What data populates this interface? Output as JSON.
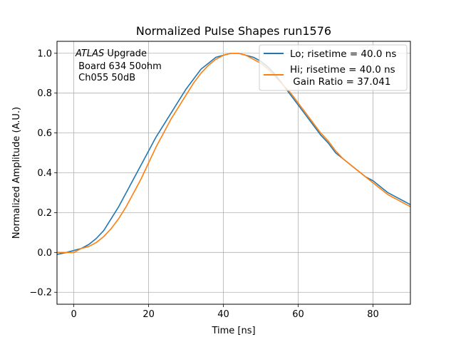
{
  "chart_data": {
    "type": "line",
    "title": "Normalized Pulse Shapes run1576",
    "xlabel": "Time [ns]",
    "ylabel": "Normalized Amplitude (A.U.)",
    "xlim": [
      -4.5,
      90
    ],
    "ylim": [
      -0.26,
      1.06
    ],
    "xticks": [
      0,
      20,
      40,
      60,
      80
    ],
    "xtick_labels": [
      "0",
      "20",
      "40",
      "60",
      "80"
    ],
    "yticks": [
      -0.2,
      0.0,
      0.2,
      0.4,
      0.6,
      0.8,
      1.0
    ],
    "ytick_labels": [
      "−0.2",
      "0.0",
      "0.2",
      "0.4",
      "0.6",
      "0.8",
      "1.0"
    ],
    "grid": true,
    "legend_position": "top-right",
    "annotation": {
      "line1_italic": "ATLAS",
      "line1_rest": " Upgrade",
      "line2": "Board 634 50ohm",
      "line3": "Ch055 50dB"
    },
    "series": [
      {
        "name": "Lo; risetime = 40.0 ns",
        "color": "#1f77b4",
        "x": [
          -4.5,
          -2,
          0,
          2,
          4,
          6,
          8,
          10,
          12,
          14,
          16,
          18,
          20,
          22,
          24,
          26,
          28,
          30,
          32,
          34,
          36,
          38,
          40,
          42,
          44,
          46,
          48,
          50,
          52,
          54,
          56,
          58,
          60,
          62,
          64,
          66,
          68,
          70,
          72,
          74,
          76,
          78,
          80,
          82,
          84,
          86,
          88,
          90
        ],
        "y": [
          -0.01,
          0.0,
          0.01,
          0.02,
          0.04,
          0.07,
          0.11,
          0.17,
          0.23,
          0.3,
          0.37,
          0.44,
          0.51,
          0.58,
          0.64,
          0.7,
          0.76,
          0.82,
          0.87,
          0.92,
          0.95,
          0.98,
          0.99,
          1.0,
          1.0,
          0.99,
          0.98,
          0.96,
          0.93,
          0.89,
          0.84,
          0.79,
          0.74,
          0.69,
          0.64,
          0.59,
          0.55,
          0.5,
          0.47,
          0.44,
          0.41,
          0.38,
          0.36,
          0.33,
          0.3,
          0.28,
          0.26,
          0.24
        ]
      },
      {
        "name": "Hi; risetime = 40.0 ns\n Gain Ratio = 37.041",
        "color": "#ff7f0e",
        "x": [
          -4.5,
          -2,
          0,
          2,
          4,
          6,
          8,
          10,
          12,
          14,
          16,
          18,
          20,
          22,
          24,
          26,
          28,
          30,
          32,
          34,
          36,
          38,
          40,
          42,
          44,
          46,
          48,
          50,
          52,
          54,
          56,
          58,
          60,
          62,
          64,
          66,
          68,
          70,
          72,
          74,
          76,
          78,
          80,
          82,
          84,
          86,
          88,
          90
        ],
        "y": [
          0.0,
          0.0,
          0.0,
          0.02,
          0.03,
          0.05,
          0.08,
          0.12,
          0.17,
          0.23,
          0.3,
          0.37,
          0.45,
          0.53,
          0.6,
          0.67,
          0.73,
          0.79,
          0.85,
          0.9,
          0.94,
          0.97,
          0.99,
          1.0,
          1.0,
          0.99,
          0.97,
          0.95,
          0.92,
          0.88,
          0.84,
          0.8,
          0.75,
          0.7,
          0.65,
          0.6,
          0.56,
          0.51,
          0.47,
          0.44,
          0.41,
          0.38,
          0.35,
          0.32,
          0.29,
          0.27,
          0.25,
          0.23
        ]
      }
    ]
  },
  "colors": {
    "frame": "#000000",
    "grid": "#b0b0b0",
    "legend_border": "#cccccc"
  }
}
